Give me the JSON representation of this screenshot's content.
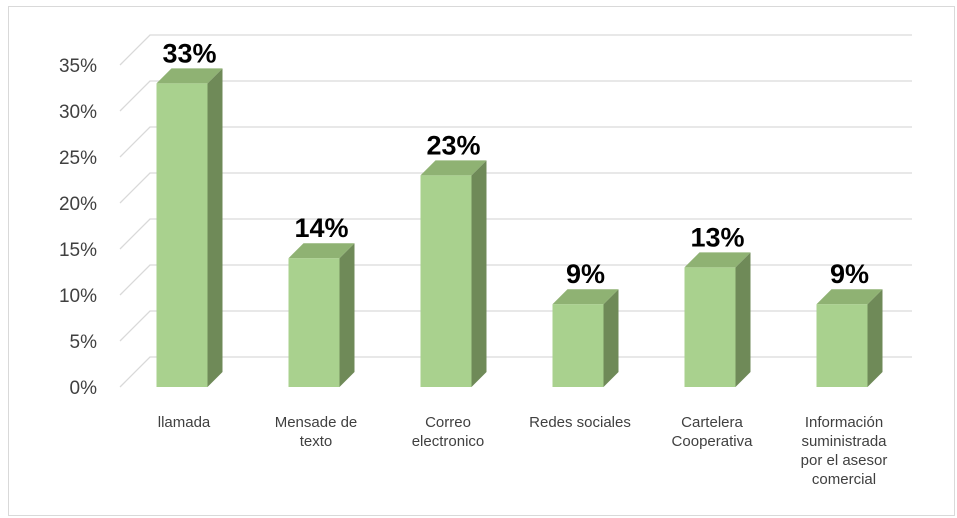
{
  "chart_data": {
    "type": "bar",
    "style": "3d-column",
    "categories": [
      "llamada",
      "Mensade de texto",
      "Correo electronico",
      "Redes sociales",
      "Cartelera Cooperativa",
      "Información suministrada por el asesor comercial"
    ],
    "category_label_lines": [
      [
        "llamada"
      ],
      [
        "Mensade de",
        "texto"
      ],
      [
        "Correo",
        "electronico"
      ],
      [
        "Redes sociales"
      ],
      [
        "Cartelera",
        "Cooperativa"
      ],
      [
        "Información",
        "suministrada",
        "por el asesor",
        "comercial"
      ]
    ],
    "values": [
      33,
      14,
      23,
      9,
      13,
      9
    ],
    "data_labels": [
      "33%",
      "14%",
      "23%",
      "9%",
      "13%",
      "9%"
    ],
    "y_ticks": [
      "0%",
      "5%",
      "10%",
      "15%",
      "20%",
      "25%",
      "30%",
      "35%"
    ],
    "ylim": [
      0,
      35
    ],
    "unit": "%",
    "title": "",
    "xlabel": "",
    "ylabel": "",
    "grid": true,
    "legend": "none",
    "colors": {
      "bar_front": "#a9d18e",
      "bar_side": "#6f8a58",
      "bar_top": "#8fb273",
      "grid": "#d9d9d9",
      "text": "#404040",
      "data_label": "#000000"
    }
  }
}
